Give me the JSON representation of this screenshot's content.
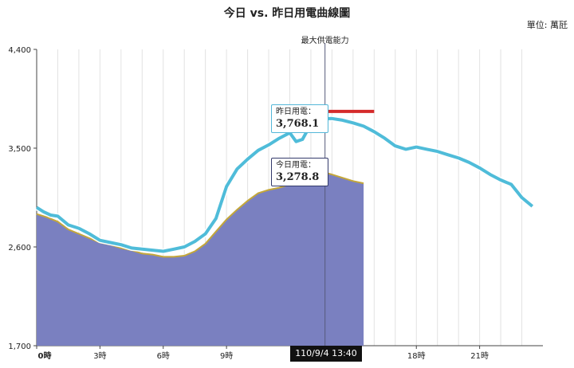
{
  "title": "今日 vs. 昨日用電曲線圖",
  "unit": "單位: 萬瓩",
  "max_supply_label": "最大供電能力",
  "tooltip_yesterday": {
    "label": "昨日用電：",
    "value": "3,768.1"
  },
  "tooltip_today": {
    "label": "今日用電：",
    "value": "3,278.8"
  },
  "time_badge": "110/9/4 13:40",
  "colors": {
    "yesterday": "#4fbcd9",
    "today_fill": "#7a80c0",
    "today_line": "#c4a73a",
    "max_supply": "#d42a2a",
    "crosshair": "#555a7a"
  },
  "chart_data": {
    "type": "area",
    "title": "今日 vs. 昨日用電曲線圖",
    "ylabel": "萬瓩",
    "ylim": [
      1700,
      4400
    ],
    "yticks": [
      "1,700",
      "2,600",
      "3,500",
      "4,400"
    ],
    "ytick_values": [
      1700,
      2600,
      3500,
      4400
    ],
    "xlim": [
      0,
      24
    ],
    "xticks": [
      "0時",
      "3時",
      "6時",
      "9時",
      "18時",
      "21時"
    ],
    "xtick_values": [
      0,
      3,
      6,
      9,
      18,
      21
    ],
    "grid": "vertical",
    "series": [
      {
        "name": "昨日用電",
        "kind": "line",
        "x": [
          0,
          0.33,
          0.66,
          1,
          1.5,
          2,
          2.5,
          3,
          3.5,
          4,
          4.5,
          5,
          5.5,
          6,
          6.5,
          7,
          7.5,
          8,
          8.5,
          9,
          9.5,
          10,
          10.5,
          11,
          11.5,
          12,
          12.3,
          12.6,
          13,
          13.67,
          14,
          14.5,
          15,
          15.5,
          16,
          16.5,
          17,
          17.5,
          18,
          18.5,
          19,
          19.5,
          20,
          20.5,
          21,
          21.5,
          22,
          22.5,
          23,
          23.5
        ],
        "y": [
          2960,
          2920,
          2890,
          2880,
          2800,
          2770,
          2720,
          2660,
          2640,
          2620,
          2590,
          2580,
          2570,
          2560,
          2580,
          2600,
          2650,
          2720,
          2860,
          3150,
          3310,
          3400,
          3480,
          3530,
          3590,
          3640,
          3560,
          3580,
          3720,
          3768.1,
          3770,
          3755,
          3730,
          3700,
          3650,
          3590,
          3520,
          3490,
          3510,
          3490,
          3470,
          3440,
          3410,
          3370,
          3320,
          3260,
          3210,
          3170,
          3050,
          2970
        ]
      },
      {
        "name": "今日用電",
        "kind": "area",
        "x": [
          0,
          0.5,
          1,
          1.5,
          2,
          2.5,
          3,
          3.5,
          4,
          4.5,
          5,
          5.5,
          6,
          6.5,
          7,
          7.5,
          8,
          8.5,
          9,
          9.5,
          10,
          10.5,
          11,
          11.5,
          12,
          12.5,
          13,
          13.67,
          14,
          14.5,
          15,
          15.5
        ],
        "y": [
          2900,
          2870,
          2830,
          2760,
          2720,
          2680,
          2640,
          2620,
          2590,
          2570,
          2540,
          2530,
          2510,
          2510,
          2520,
          2560,
          2630,
          2740,
          2850,
          2940,
          3020,
          3090,
          3120,
          3140,
          3170,
          3200,
          3230,
          3278.8,
          3260,
          3230,
          3200,
          3180
        ]
      },
      {
        "name": "最大供電能力",
        "kind": "segment",
        "x": [
          13.67,
          16.0
        ],
        "y": [
          3835,
          3835
        ]
      }
    ]
  }
}
